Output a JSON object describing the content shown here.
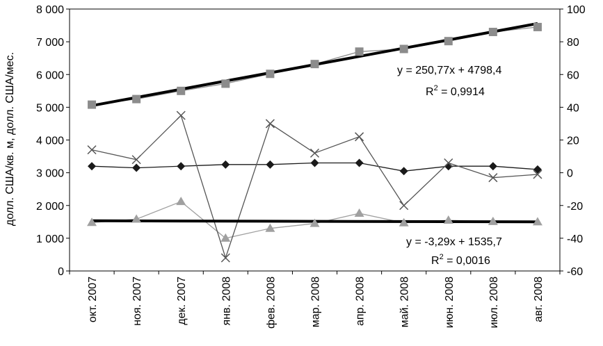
{
  "chart_data": {
    "type": "line",
    "categories": [
      "окт. 2007",
      "ноя. 2007",
      "дек. 2007",
      "янв. 2008",
      "фев. 2008",
      "мар. 2008",
      "апр. 2008",
      "май. 2008",
      "июн. 2008",
      "июл. 2008",
      "авг. 2008"
    ],
    "ylabel": "долл. США/кв. м, долл. США/мес.",
    "y_left": {
      "min": 0,
      "max": 8000,
      "step": 1000,
      "tick_labels": [
        "0",
        "1 000",
        "2 000",
        "3 000",
        "4 000",
        "5 000",
        "6 000",
        "7 000",
        "8 000"
      ]
    },
    "y_right": {
      "min": -60,
      "max": 100,
      "step": 20,
      "tick_labels": [
        "-60",
        "-40",
        "-20",
        "0",
        "20",
        "40",
        "60",
        "80",
        "100"
      ]
    },
    "series": [
      {
        "name": "squares",
        "axis": "left",
        "marker": "square",
        "color": "#8c8c8c",
        "values": [
          5080,
          5250,
          5500,
          5720,
          6020,
          6320,
          6700,
          6780,
          7020,
          7300,
          7450
        ]
      },
      {
        "name": "triangles",
        "axis": "left",
        "marker": "triangle",
        "color": "#a0a0a0",
        "values": [
          1480,
          1580,
          2120,
          1000,
          1300,
          1450,
          1760,
          1470,
          1550,
          1510,
          1500
        ]
      },
      {
        "name": "diamonds",
        "axis": "right",
        "marker": "diamond",
        "color": "#1a1a1a",
        "values": [
          4,
          3,
          4,
          5,
          5,
          6,
          6,
          1,
          4,
          4,
          2
        ]
      },
      {
        "name": "crosses",
        "axis": "right",
        "marker": "x",
        "color": "#555555",
        "values": [
          14,
          8,
          35,
          -52,
          30,
          12,
          22,
          -20,
          6,
          -3,
          -1
        ]
      }
    ],
    "trendlines": [
      {
        "name": "trend-upper",
        "axis": "left",
        "slope": 250.77,
        "intercept": 4798.4,
        "equation": "y = 250,77x + 4798,4",
        "r2_prefix": "R",
        "r2_sup": "2",
        "r2_value": " = 0,9914"
      },
      {
        "name": "trend-lower",
        "axis": "left",
        "slope": -3.29,
        "intercept": 1535.7,
        "equation": "y = -3,29x + 1535,7",
        "r2_prefix": "R",
        "r2_sup": "2",
        "r2_value": " = 0,0016"
      }
    ]
  }
}
